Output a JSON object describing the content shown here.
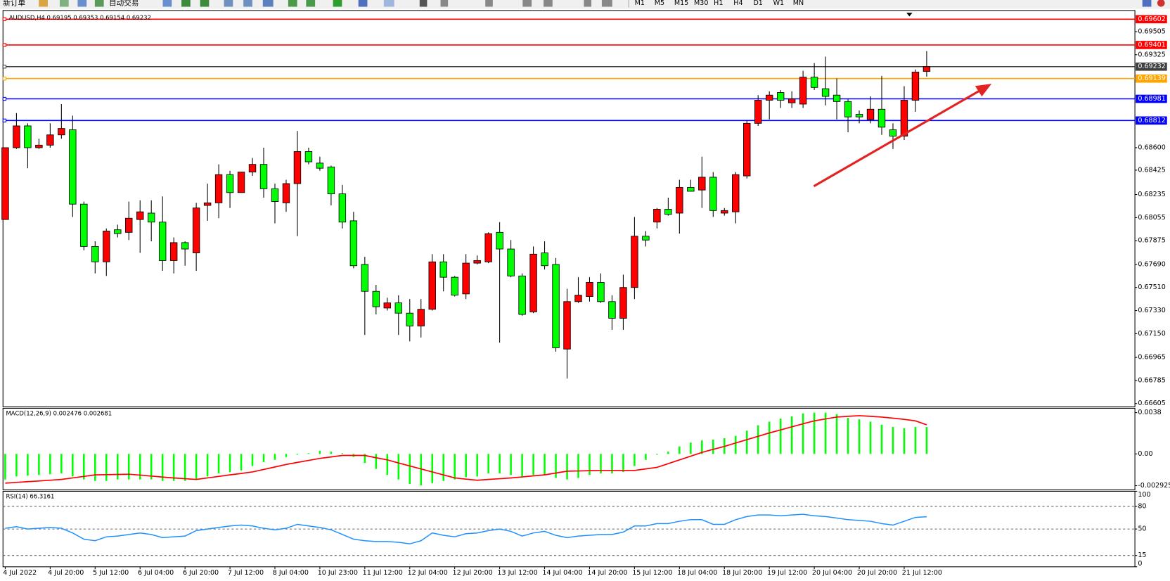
{
  "toolbar": {
    "items": [
      "新订单",
      "自动交易"
    ],
    "timeframes": [
      "M1",
      "M5",
      "M15",
      "M30",
      "H1",
      "H4",
      "D1",
      "W1",
      "MN"
    ]
  },
  "chart_data": [
    {
      "type": "candlestick",
      "title": "AUDUSD,H4 0.69195 0.69353 0.69154 0.69232",
      "x": [
        "4 Jul 2022",
        null,
        null,
        null,
        "4 Jul 20:00",
        null,
        null,
        null,
        "5 Jul 12:00",
        null,
        null,
        null,
        "6 Jul 04:00",
        null,
        null,
        null,
        "6 Jul 20:00",
        null,
        null,
        null,
        "7 Jul 12:00",
        null,
        null,
        null,
        "8 Jul 04:00",
        null,
        null,
        null,
        "10 Jul 23:00",
        null,
        null,
        null,
        "11 Jul 12:00",
        null,
        null,
        null,
        "12 Jul 04:00",
        null,
        null,
        null,
        "12 Jul 20:00",
        null,
        null,
        null,
        "13 Jul 12:00",
        null,
        null,
        null,
        "14 Jul 04:00",
        null,
        null,
        null,
        "14 Jul 20:00",
        null,
        null,
        null,
        "15 Jul 12:00",
        null,
        null,
        null,
        "18 Jul 04:00",
        null,
        null,
        null,
        "18 Jul 20:00",
        null,
        null,
        null,
        "19 Jul 12:00",
        null,
        null,
        null,
        "20 Jul 04:00",
        null,
        null,
        null,
        "20 Jul 20:00",
        null,
        null,
        null,
        "21 Jul 12:00",
        null,
        null
      ],
      "open": [
        0.6804,
        0.686,
        0.6877,
        0.686,
        0.6862,
        0.687,
        0.6874,
        0.6816,
        0.6783,
        0.6771,
        0.6796,
        0.6794,
        0.6804,
        0.6809,
        0.6802,
        0.6772,
        0.6786,
        0.6778,
        0.6815,
        0.6817,
        0.6839,
        0.6825,
        0.6841,
        0.6847,
        0.6828,
        0.6817,
        0.6832,
        0.6857,
        0.6848,
        0.6845,
        0.6824,
        0.6803,
        0.6769,
        0.6748,
        0.6735,
        0.6739,
        0.6731,
        0.6721,
        0.6734,
        0.6771,
        0.6759,
        0.6746,
        0.677,
        0.6771,
        0.6794,
        0.6781,
        0.676,
        0.6732,
        0.6778,
        0.6769,
        0.6703,
        0.674,
        0.6744,
        0.6755,
        0.674,
        0.6727,
        0.6751,
        0.6791,
        0.6802,
        0.6812,
        0.6809,
        0.6829,
        0.6827,
        0.6837,
        0.6809,
        0.681,
        0.6838,
        0.6879,
        0.6897,
        0.6903,
        0.6895,
        0.6894,
        0.6915,
        0.6906,
        0.6901,
        0.6896,
        0.6886,
        0.6882,
        0.689,
        0.6874,
        0.6869,
        0.6897,
        0.69195
      ],
      "high": [
        0.686,
        0.6887,
        0.6879,
        0.6867,
        0.6879,
        0.6894,
        0.6885,
        0.6818,
        0.6787,
        0.6797,
        0.68,
        0.6818,
        0.6819,
        0.6819,
        0.6822,
        0.679,
        0.6787,
        0.6817,
        0.6832,
        0.6847,
        0.6842,
        0.6841,
        0.6852,
        0.686,
        0.6832,
        0.6835,
        0.6873,
        0.686,
        0.6853,
        0.6846,
        0.6831,
        0.681,
        0.6775,
        0.6753,
        0.6743,
        0.6745,
        0.6742,
        0.6742,
        0.6777,
        0.6777,
        0.676,
        0.6777,
        0.6776,
        0.6794,
        0.6802,
        0.6788,
        0.6762,
        0.6783,
        0.6787,
        0.6774,
        0.675,
        0.6759,
        0.6759,
        0.6762,
        0.6745,
        0.6761,
        0.6806,
        0.6795,
        0.6813,
        0.6821,
        0.6835,
        0.6835,
        0.6853,
        0.6841,
        0.6813,
        0.6841,
        0.6881,
        0.6901,
        0.6904,
        0.6905,
        0.6904,
        0.692,
        0.6926,
        0.6931,
        0.6914,
        0.6898,
        0.6889,
        0.69,
        0.6916,
        0.6879,
        0.6908,
        0.6921,
        0.69353
      ],
      "low": [
        0.6804,
        0.6859,
        0.6844,
        0.6859,
        0.686,
        0.6867,
        0.6806,
        0.678,
        0.6762,
        0.676,
        0.679,
        0.6788,
        0.6778,
        0.6787,
        0.6764,
        0.6762,
        0.6768,
        0.6764,
        0.6803,
        0.6805,
        0.6813,
        0.6825,
        0.6838,
        0.6821,
        0.6801,
        0.681,
        0.6791,
        0.6847,
        0.6842,
        0.6815,
        0.6797,
        0.6766,
        0.6714,
        0.673,
        0.6733,
        0.6714,
        0.6709,
        0.6712,
        0.6733,
        0.6748,
        0.6744,
        0.6742,
        0.6769,
        0.677,
        0.6708,
        0.6759,
        0.6729,
        0.6731,
        0.6765,
        0.6701,
        0.668,
        0.6739,
        0.674,
        0.6739,
        0.6718,
        0.6718,
        0.6742,
        0.6783,
        0.6797,
        0.6807,
        0.6793,
        0.6826,
        0.6813,
        0.6806,
        0.6807,
        0.6801,
        0.6836,
        0.6877,
        0.6882,
        0.6891,
        0.6891,
        0.6891,
        0.6905,
        0.6893,
        0.6882,
        0.6872,
        0.6879,
        0.6879,
        0.687,
        0.6859,
        0.6866,
        0.6888,
        0.69154
      ],
      "close": [
        0.686,
        0.6877,
        0.686,
        0.6862,
        0.687,
        0.6875,
        0.6816,
        0.6783,
        0.6771,
        0.6795,
        0.6793,
        0.6805,
        0.681,
        0.6802,
        0.6772,
        0.6786,
        0.6781,
        0.6813,
        0.6817,
        0.6839,
        0.6825,
        0.6841,
        0.6847,
        0.6828,
        0.6818,
        0.6832,
        0.6857,
        0.6849,
        0.6844,
        0.6824,
        0.6802,
        0.6768,
        0.6748,
        0.6736,
        0.6739,
        0.6731,
        0.6721,
        0.6734,
        0.6771,
        0.6759,
        0.6745,
        0.677,
        0.6772,
        0.6793,
        0.6781,
        0.676,
        0.673,
        0.6777,
        0.6768,
        0.6704,
        0.674,
        0.6745,
        0.6755,
        0.674,
        0.6727,
        0.6751,
        0.6791,
        0.6788,
        0.6812,
        0.6808,
        0.6829,
        0.6826,
        0.6837,
        0.6811,
        0.6811,
        0.6839,
        0.6879,
        0.6897,
        0.6901,
        0.6897,
        0.6898,
        0.6915,
        0.6907,
        0.69,
        0.6896,
        0.6884,
        0.6884,
        0.689,
        0.6876,
        0.6869,
        0.6897,
        0.6919,
        0.69232
      ],
      "up_color": "#ff0000",
      "down_color": "#00ff00",
      "ylim": [
        0.6658,
        0.6967
      ],
      "yticks": [
        0.69505,
        0.69325,
        {
          "value": 0.686,
          "label": "0.68600"
        },
        0.68425,
        0.68235,
        0.68055,
        0.67875,
        {
          "value": 0.6769,
          "label": "0.67690"
        },
        {
          "value": 0.6751,
          "label": "0.67510"
        },
        {
          "value": 0.6733,
          "label": "0.67330"
        },
        {
          "value": 0.6715,
          "label": "0.67150"
        },
        0.66965,
        0.66785,
        0.66605
      ],
      "levels": [
        {
          "value": 0.69602,
          "color": "#ff0000"
        },
        {
          "value": 0.69401,
          "color": "#ff0000"
        },
        {
          "value": 0.69232,
          "color": "#404040"
        },
        {
          "value": 0.69139,
          "color": "#ffa500"
        },
        {
          "value": 0.68981,
          "color": "#0000ff"
        },
        {
          "value": 0.68812,
          "color": "#0000ff"
        }
      ]
    },
    {
      "type": "macd",
      "title": "MACD(12,26,9) 0.002476 0.002681",
      "bars": {
        "color": "#00ff00",
        "values": [
          -0.00235,
          -0.00207,
          -0.002,
          -0.00193,
          -0.00187,
          -0.0018,
          -0.00207,
          -0.00235,
          -0.00249,
          -0.00249,
          -0.00235,
          -0.00235,
          -0.00235,
          -0.00235,
          -0.00249,
          -0.00249,
          -0.00249,
          -0.00235,
          -0.00207,
          -0.0018,
          -0.00166,
          -0.00152,
          -0.00111,
          -0.00076,
          -0.00055,
          -0.00028,
          -7e-05,
          7e-05,
          0.00028,
          0.00021,
          7e-05,
          -0.00028,
          -0.00083,
          -0.00138,
          -0.00193,
          -0.00235,
          -0.00276,
          -0.0029,
          -0.00269,
          -0.00249,
          -0.00235,
          -0.00214,
          -0.00207,
          -0.0018,
          -0.0018,
          -0.00193,
          -0.00207,
          -0.00193,
          -0.00193,
          -0.00221,
          -0.00235,
          -0.00221,
          -0.00193,
          -0.0018,
          -0.0018,
          -0.00166,
          -0.00111,
          -0.00055,
          -7e-05,
          0.00021,
          0.00069,
          0.00104,
          0.00124,
          0.00131,
          0.00145,
          0.00166,
          0.00214,
          0.00263,
          0.00297,
          0.00325,
          0.00346,
          0.00373,
          0.0038,
          0.0038,
          0.00366,
          0.00332,
          0.00318,
          0.00297,
          0.00269,
          0.00249,
          0.00235,
          0.00249,
          0.002476
        ]
      },
      "line": {
        "color": "#ff0000",
        "values": [
          -0.00269,
          -0.00262,
          -0.00255,
          -0.00249,
          -0.00242,
          -0.00235,
          -0.00221,
          -0.00207,
          -0.00193,
          -0.00191,
          -0.00189,
          -0.00187,
          -0.00195,
          -0.00204,
          -0.00213,
          -0.00221,
          -0.00228,
          -0.00235,
          -0.00221,
          -0.00207,
          -0.00193,
          -0.0018,
          -0.00166,
          -0.00143,
          -0.0012,
          -0.00097,
          -0.00078,
          -0.0006,
          -0.00041,
          -0.00028,
          -0.00014,
          -0.00014,
          -0.00014,
          -0.00035,
          -0.00055,
          -0.00083,
          -0.00111,
          -0.00138,
          -0.00166,
          -0.00193,
          -0.00221,
          -0.00232,
          -0.00242,
          -0.00235,
          -0.00228,
          -0.00221,
          -0.00212,
          -0.00202,
          -0.00193,
          -0.00176,
          -0.00159,
          -0.00157,
          -0.00154,
          -0.00152,
          -0.00152,
          -0.00152,
          -0.00152,
          -0.00138,
          -0.00124,
          -0.0009,
          -0.00055,
          -0.00021,
          0.00014,
          0.00042,
          0.00069,
          0.001,
          0.00131,
          0.00162,
          0.00193,
          0.00221,
          0.00249,
          0.00277,
          0.00304,
          0.00322,
          0.00339,
          0.00346,
          0.00352,
          0.00346,
          0.00339,
          0.00329,
          0.00318,
          0.00304,
          0.002681
        ]
      },
      "ylim": [
        -0.0033,
        0.0042
      ],
      "yticks": [
        0.0038,
        {
          "value": 0,
          "label": "0.00"
        },
        -0.002925
      ]
    },
    {
      "type": "line",
      "title": "RSI(14) 66.3161",
      "color": "#1e90ff",
      "values": [
        51.0,
        53.1,
        50.0,
        51.0,
        52.1,
        51.0,
        44.8,
        36.6,
        34.5,
        39.7,
        40.7,
        42.8,
        44.8,
        42.8,
        38.6,
        39.7,
        40.7,
        47.9,
        50.0,
        52.1,
        54.1,
        55.2,
        54.1,
        51.0,
        49.0,
        51.0,
        56.2,
        54.1,
        52.1,
        49.0,
        42.8,
        36.6,
        34.5,
        33.5,
        33.5,
        32.4,
        30.4,
        34.5,
        44.8,
        41.7,
        39.7,
        43.8,
        44.8,
        47.9,
        50.0,
        46.9,
        40.7,
        44.8,
        46.9,
        41.7,
        38.6,
        40.7,
        41.7,
        42.8,
        42.8,
        45.9,
        54.1,
        54.1,
        57.2,
        57.2,
        60.3,
        62.4,
        62.4,
        56.2,
        56.2,
        62.4,
        66.5,
        68.6,
        68.6,
        67.6,
        68.6,
        69.6,
        67.6,
        66.5,
        64.5,
        62.4,
        61.4,
        60.3,
        57.2,
        55.2,
        60.3,
        65.4,
        66.3161
      ],
      "ylim": [
        0,
        100
      ],
      "yticks": [
        100,
        80,
        50,
        15,
        0
      ],
      "levels": [
        80,
        50,
        15
      ]
    }
  ]
}
